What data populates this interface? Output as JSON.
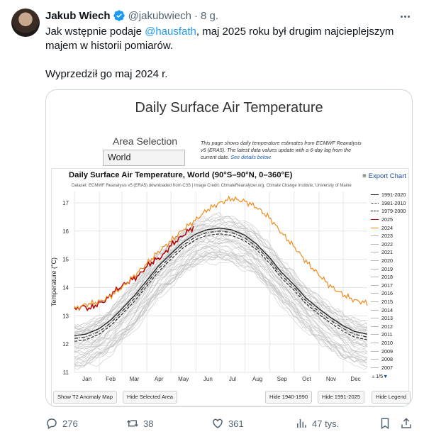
{
  "tweet": {
    "author": "Jakub Wiech",
    "handle": "@jakubwiech",
    "separator": "·",
    "time": "8 g.",
    "text_line1_pre": "Jak wstępnie podaje ",
    "mention": "@hausfath",
    "text_line1_post": ", maj 2025 roku był drugim najcieplejszym majem w historii pomiarów.",
    "text_line2": "Wyprzedził go maj 2024 r."
  },
  "media": {
    "page_title": "Daily Surface Air Temperature",
    "area_label": "Area Selection",
    "area_value": "World",
    "info_text": "This page shows daily temperature estimates from ECMWF Reanalysis v5 (ERA5). The latest data values update with a 6-day lag from the current date.",
    "info_link": "See details below.",
    "export_label": "Export Chart",
    "export_icon": "menu-icon",
    "dataset_text": "Dataset: ECMWF Reanalysis v5 (ERA5) downloaded from C3S | Image Credit: ClimateReanalyzer.org, Climate Change Institute, University of Maine",
    "buttons": {
      "anomaly": "Show T2 Anomaly Map",
      "hide_area": "Hide Selected Area",
      "hide_1940": "Hide 1940-1990",
      "hide_1991": "Hide 1991-2025",
      "hide_legend": "Hide Legend"
    },
    "legend_page": "1/5",
    "pager_up_icon": "triangle-up-icon",
    "pager_down_icon": "triangle-down-icon"
  },
  "chart_data": {
    "type": "line",
    "title": "Daily Surface Air Temperature, World (90°S–90°N, 0–360°E)",
    "xlabel": "",
    "ylabel": "Temperature (°C)",
    "categories": [
      "Jan",
      "Feb",
      "Mar",
      "Apr",
      "May",
      "Jun",
      "Jul",
      "Aug",
      "Sep",
      "Oct",
      "Nov",
      "Dec"
    ],
    "ylim": [
      11,
      17.4
    ],
    "yticks": [
      11,
      12,
      13,
      14,
      15,
      16,
      17
    ],
    "grid": true,
    "legend_position": "right",
    "legend": [
      "1991-2020",
      "1981-2010",
      "1979-2000",
      "2025",
      "2024",
      "2023",
      "2022",
      "2021",
      "2020",
      "2019",
      "2018",
      "2017",
      "2016",
      "2015",
      "2014",
      "2013",
      "2012",
      "2011",
      "2010",
      "2009",
      "2008",
      "2007"
    ],
    "colors": {
      "s2025": "#b00a0a",
      "s2024": "#f08a1c",
      "mean": "#222222",
      "hist": "#b8b8b8"
    },
    "series": [
      {
        "name": "1991-2020",
        "style": "solid",
        "x": [
          1,
          15,
          32,
          46,
          60,
          75,
          91,
          105,
          121,
          136,
          152,
          166,
          182,
          196,
          213,
          227,
          244,
          258,
          274,
          288,
          305,
          319,
          335,
          349,
          365
        ],
        "y": [
          12.3,
          12.35,
          12.55,
          12.85,
          13.25,
          13.7,
          14.25,
          14.75,
          15.2,
          15.6,
          15.9,
          16.05,
          16.1,
          16.05,
          15.85,
          15.55,
          15.05,
          14.55,
          14.1,
          13.65,
          13.25,
          12.95,
          12.65,
          12.45,
          12.35
        ]
      },
      {
        "name": "1981-2010",
        "style": "dash-dot",
        "x": [
          1,
          15,
          32,
          46,
          60,
          75,
          91,
          105,
          121,
          136,
          152,
          166,
          182,
          196,
          213,
          227,
          244,
          258,
          274,
          288,
          305,
          319,
          335,
          349,
          365
        ],
        "y": [
          12.2,
          12.25,
          12.45,
          12.75,
          13.15,
          13.6,
          14.15,
          14.65,
          15.1,
          15.5,
          15.8,
          15.95,
          16.0,
          15.95,
          15.75,
          15.45,
          14.95,
          14.45,
          14.0,
          13.55,
          13.15,
          12.85,
          12.55,
          12.35,
          12.25
        ]
      },
      {
        "name": "1979-2000",
        "style": "dashed",
        "x": [
          1,
          15,
          32,
          46,
          60,
          75,
          91,
          105,
          121,
          136,
          152,
          166,
          182,
          196,
          213,
          227,
          244,
          258,
          274,
          288,
          305,
          319,
          335,
          349,
          365
        ],
        "y": [
          12.1,
          12.15,
          12.35,
          12.65,
          13.05,
          13.5,
          14.05,
          14.55,
          15.0,
          15.4,
          15.7,
          15.85,
          15.9,
          15.85,
          15.65,
          15.35,
          14.85,
          14.35,
          13.9,
          13.45,
          13.05,
          12.75,
          12.45,
          12.25,
          12.15
        ]
      },
      {
        "name": "2025",
        "x": [
          1,
          10,
          20,
          32,
          40,
          50,
          60,
          70,
          80,
          91,
          100,
          110,
          121,
          130,
          140,
          150
        ],
        "y": [
          13.2,
          13.35,
          13.25,
          13.45,
          13.55,
          13.85,
          14.05,
          14.25,
          14.4,
          14.75,
          14.95,
          15.1,
          15.5,
          15.7,
          15.95,
          16.15
        ]
      },
      {
        "name": "2024",
        "x": [
          1,
          15,
          32,
          46,
          60,
          75,
          91,
          105,
          121,
          136,
          152,
          166,
          182,
          196,
          213,
          227,
          244,
          258,
          274,
          288,
          305,
          319,
          335,
          349,
          365
        ],
        "y": [
          13.25,
          13.4,
          13.5,
          13.7,
          14.0,
          14.4,
          14.85,
          15.25,
          15.65,
          16.05,
          16.4,
          16.75,
          17.0,
          17.15,
          17.05,
          16.85,
          16.45,
          15.95,
          15.45,
          14.95,
          14.45,
          14.05,
          13.75,
          13.55,
          13.45
        ]
      }
    ]
  }
}
